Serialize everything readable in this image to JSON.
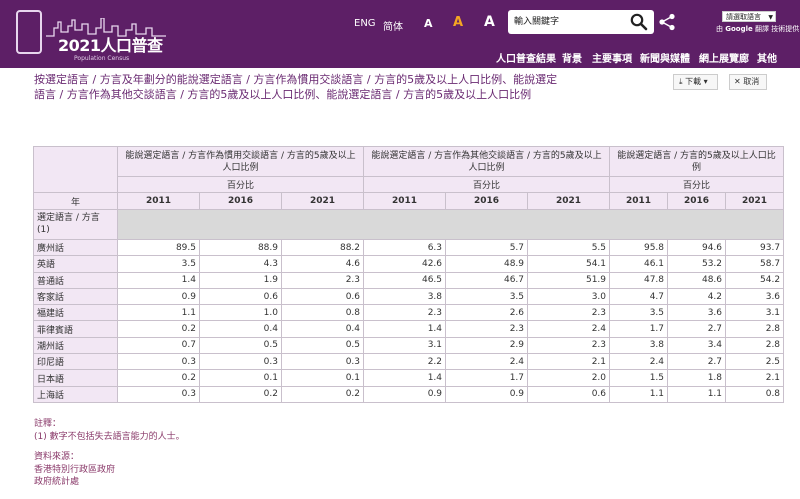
{
  "header": {
    "logo_year": "2021",
    "logo_title": "人口普查",
    "logo_subtitle": "Population Census",
    "lang_eng": "ENG",
    "lang_simplified": "简体",
    "font_small": "A",
    "font_medium": "A",
    "font_large": "A",
    "search_placeholder": "輸入關鍵字",
    "translate_label": "請選取語言",
    "translate_credit_prefix": "由",
    "translate_credit_google": "Google",
    "translate_credit_suffix": "翻譯 技術提供",
    "nav": [
      "人口普查結果",
      "背景",
      "主要事項",
      "新聞與媒體",
      "網上展覽廊",
      "其他"
    ],
    "brand_color": "#5d1f66",
    "accent_color": "#f5a623"
  },
  "page": {
    "title": "按選定語言 / 方言及年劃分的能說選定語言 / 方言作為慣用交談語言 / 方言的5歲及以上人口比例、能說選定語言 / 方言作為其他交談語言 / 方言的5歲及以上人口比例、能說選定語言 / 方言的5歲及以上人口比例",
    "download_label": "下載",
    "cancel_label": "取消"
  },
  "table": {
    "year_label": "年",
    "row_header": "選定語言 / 方言 (1)",
    "groups": [
      {
        "title": "能說選定語言 / 方言作為慣用交談語言 / 方言的5歲及以上人口比例",
        "unit": "百分比"
      },
      {
        "title": "能說選定語言 / 方言作為其他交談語言 / 方言的5歲及以上人口比例",
        "unit": "百分比"
      },
      {
        "title": "能說選定語言 / 方言的5歲及以上人口比例",
        "unit": "百分比"
      }
    ],
    "years": [
      "2011",
      "2016",
      "2021",
      "2011",
      "2016",
      "2021",
      "2011",
      "2016",
      "2021"
    ],
    "rows": [
      {
        "label": "廣州話",
        "values": [
          "89.5",
          "88.9",
          "88.2",
          "6.3",
          "5.7",
          "5.5",
          "95.8",
          "94.6",
          "93.7"
        ]
      },
      {
        "label": "英語",
        "values": [
          "3.5",
          "4.3",
          "4.6",
          "42.6",
          "48.9",
          "54.1",
          "46.1",
          "53.2",
          "58.7"
        ]
      },
      {
        "label": "普通話",
        "values": [
          "1.4",
          "1.9",
          "2.3",
          "46.5",
          "46.7",
          "51.9",
          "47.8",
          "48.6",
          "54.2"
        ]
      },
      {
        "label": "客家話",
        "values": [
          "0.9",
          "0.6",
          "0.6",
          "3.8",
          "3.5",
          "3.0",
          "4.7",
          "4.2",
          "3.6"
        ]
      },
      {
        "label": "福建話",
        "values": [
          "1.1",
          "1.0",
          "0.8",
          "2.3",
          "2.6",
          "2.3",
          "3.5",
          "3.6",
          "3.1"
        ]
      },
      {
        "label": "菲律賓語",
        "values": [
          "0.2",
          "0.4",
          "0.4",
          "1.4",
          "2.3",
          "2.4",
          "1.7",
          "2.7",
          "2.8"
        ]
      },
      {
        "label": "潮州話",
        "values": [
          "0.7",
          "0.5",
          "0.5",
          "3.1",
          "2.9",
          "2.3",
          "3.8",
          "3.4",
          "2.8"
        ]
      },
      {
        "label": "印尼語",
        "values": [
          "0.3",
          "0.3",
          "0.3",
          "2.2",
          "2.4",
          "2.1",
          "2.4",
          "2.7",
          "2.5"
        ]
      },
      {
        "label": "日本語",
        "values": [
          "0.2",
          "0.1",
          "0.1",
          "1.4",
          "1.7",
          "2.0",
          "1.5",
          "1.8",
          "2.1"
        ]
      },
      {
        "label": "上海話",
        "values": [
          "0.3",
          "0.2",
          "0.2",
          "0.9",
          "0.9",
          "0.6",
          "1.1",
          "1.1",
          "0.8"
        ]
      }
    ]
  },
  "notes": {
    "notes_label": "註釋：",
    "note_1": "(1)   數字不包括失去語言能力的人士。",
    "source_label": "資料來源：",
    "source_1": "香港特別行政區政府",
    "source_2": "政府統計處"
  }
}
